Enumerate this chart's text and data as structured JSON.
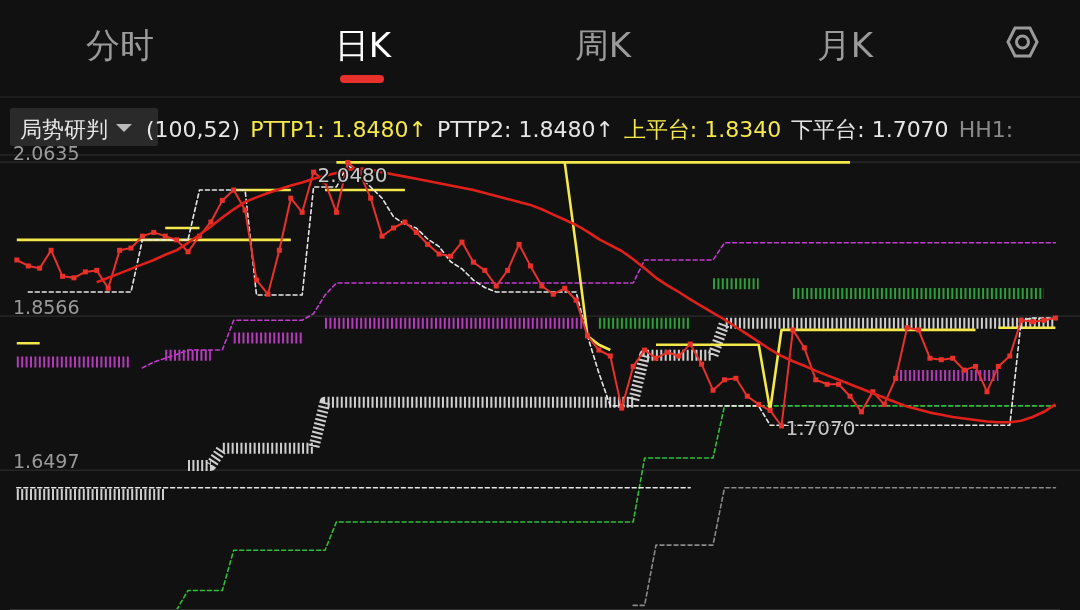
{
  "chart_data": {
    "type": "line",
    "annotations": [
      "分时",
      "日K",
      "周K",
      "月K",
      "局势研判",
      "(100,52)",
      "PTTP1: 1.8480↑",
      "PTTP2: 1.8480↑",
      "上平台: 1.8340",
      "下平台: 1.7070",
      "HH1:",
      {
        "text": "2.0480",
        "y": 2.048
      },
      {
        "text": "1.7070",
        "y": 1.707
      }
    ],
    "categories": [
      null,
      null,
      null,
      null,
      null,
      null,
      null,
      null,
      null,
      null,
      null,
      null,
      null,
      null,
      null,
      null,
      null,
      null,
      null,
      null,
      null,
      null,
      null,
      null,
      null,
      null,
      null,
      null,
      null,
      null,
      null,
      null,
      null,
      null,
      null,
      null,
      null,
      null,
      null,
      null,
      null,
      null,
      null,
      null,
      null,
      null,
      null,
      null,
      null,
      null,
      null,
      null,
      null,
      null,
      null,
      null,
      null,
      null,
      null,
      null,
      null,
      null,
      null,
      null,
      null,
      null,
      null,
      null,
      null,
      null,
      null,
      null,
      null,
      null,
      null,
      null,
      null,
      null,
      null,
      null,
      null,
      null,
      null,
      null,
      null,
      null,
      null,
      null,
      null,
      null,
      null,
      null
    ],
    "ylim": [
      1.4618,
      2.073
    ],
    "yticks": [
      2.0635,
      1.8566,
      1.6497
    ],
    "grid": "y",
    "tick_labels": "y",
    "series": [
      {
        "type": "line",
        "color": "#8a8a8a",
        "line_style": "dashed",
        "values": [
          null,
          null,
          null,
          null,
          null,
          null,
          null,
          null,
          null,
          null,
          null,
          null,
          null,
          null,
          null,
          null,
          null,
          null,
          null,
          null,
          null,
          null,
          null,
          null,
          null,
          null,
          null,
          null,
          null,
          null,
          null,
          null,
          null,
          null,
          null,
          null,
          null,
          null,
          null,
          null,
          null,
          null,
          null,
          null,
          null,
          null,
          null,
          null,
          null,
          null,
          null,
          null,
          null,
          null,
          1.468,
          1.468,
          1.549,
          1.549,
          1.549,
          1.549,
          1.549,
          1.549,
          1.626,
          1.626,
          1.626,
          1.626,
          1.626,
          1.626,
          1.626,
          1.626,
          1.626,
          1.626,
          1.626,
          1.626,
          1.626,
          1.626,
          1.626,
          1.626,
          1.626,
          1.626,
          1.626,
          1.626,
          1.626,
          1.626,
          1.626,
          1.626,
          1.626,
          1.626,
          1.626,
          1.626,
          1.626,
          1.626
        ]
      },
      {
        "type": "line",
        "color": "#2fbf3a",
        "line_style": "dashed",
        "values": [
          null,
          null,
          null,
          null,
          null,
          null,
          null,
          null,
          null,
          null,
          null,
          null,
          null,
          null,
          1.462,
          1.488,
          1.488,
          1.488,
          1.488,
          1.542,
          1.542,
          1.542,
          1.542,
          1.542,
          1.542,
          1.542,
          1.542,
          1.542,
          1.58,
          1.58,
          1.58,
          1.58,
          1.58,
          1.58,
          1.58,
          1.58,
          1.58,
          1.58,
          1.58,
          1.58,
          1.58,
          1.58,
          1.58,
          1.58,
          1.58,
          1.58,
          1.58,
          1.58,
          1.58,
          1.58,
          1.58,
          1.58,
          1.58,
          1.58,
          1.58,
          1.666,
          1.666,
          1.666,
          1.666,
          1.666,
          1.666,
          1.666,
          1.736,
          1.736,
          1.736,
          1.736,
          1.736,
          1.736,
          1.736,
          1.736,
          1.736,
          1.736,
          1.736,
          1.736,
          1.736,
          1.736,
          1.736,
          1.736,
          1.736,
          1.736,
          1.736,
          1.736,
          1.736,
          1.736,
          1.736,
          1.736,
          1.736,
          1.736,
          1.736,
          1.736,
          1.736,
          1.736
        ]
      },
      {
        "type": "line",
        "color": "#c23ccf",
        "line_style": "dashed",
        "values": [
          null,
          null,
          null,
          null,
          null,
          null,
          null,
          null,
          null,
          null,
          null,
          1.787,
          1.795,
          1.8,
          1.805,
          1.811,
          1.811,
          1.811,
          1.811,
          1.851,
          1.851,
          1.851,
          1.851,
          1.851,
          1.851,
          1.851,
          1.86,
          1.885,
          1.901,
          1.901,
          1.901,
          1.901,
          1.901,
          1.901,
          1.901,
          1.901,
          1.901,
          1.901,
          1.901,
          1.901,
          1.901,
          1.901,
          1.901,
          1.901,
          1.901,
          1.901,
          1.901,
          1.901,
          1.901,
          1.901,
          1.901,
          1.901,
          1.901,
          1.901,
          1.901,
          1.932,
          1.932,
          1.932,
          1.932,
          1.932,
          1.932,
          1.932,
          1.955,
          1.955,
          1.955,
          1.955,
          1.955,
          1.955,
          1.955,
          1.955,
          1.955,
          1.955,
          1.955,
          1.955,
          1.955,
          1.955,
          1.955,
          1.955,
          1.955,
          1.955,
          1.955,
          1.955,
          1.955,
          1.955,
          1.955,
          1.955,
          1.955,
          1.955,
          1.955,
          1.955,
          1.955,
          1.955
        ]
      },
      {
        "type": "line",
        "color": "#e6e6e6",
        "line_style": "dashed",
        "values": [
          1.626,
          1.626,
          1.626,
          1.626,
          1.626,
          1.626,
          1.626,
          1.626,
          1.626,
          1.626,
          1.626,
          1.626,
          1.626,
          1.626,
          1.626,
          1.626,
          1.626,
          1.626,
          1.626,
          1.626,
          1.626,
          1.626,
          1.626,
          1.626,
          1.626,
          1.626,
          1.626,
          1.626,
          1.626,
          1.626,
          1.626,
          1.626,
          1.626,
          1.626,
          1.626,
          1.626,
          1.626,
          1.626,
          1.626,
          1.626,
          1.626,
          1.626,
          1.626,
          1.626,
          1.626,
          1.626,
          1.626,
          1.626,
          1.626,
          1.626,
          1.626,
          1.626,
          1.626,
          1.626,
          1.626,
          1.626,
          1.626,
          1.626,
          1.626,
          1.626,
          null,
          null,
          null,
          null,
          null,
          null,
          null,
          null,
          null,
          null,
          null,
          null,
          null,
          null,
          null,
          null,
          null,
          null,
          null,
          null,
          null,
          null,
          null,
          null,
          null,
          null,
          null,
          null,
          null,
          null,
          null,
          null
        ]
      },
      {
        "type": "line",
        "color": "#b23cb8",
        "line_style": "dotted",
        "values": [
          1.795,
          1.795,
          1.795,
          1.795,
          1.795,
          1.795,
          1.795,
          1.795,
          1.795,
          1.795,
          1.795,
          null,
          null,
          1.804,
          1.804,
          1.804,
          1.804,
          1.804,
          null,
          1.827,
          1.827,
          1.827,
          1.827,
          1.827,
          1.827,
          1.827,
          null,
          1.847,
          1.847,
          1.847,
          1.847,
          1.847,
          1.847,
          1.847,
          1.847,
          1.847,
          1.847,
          1.847,
          1.847,
          1.847,
          1.847,
          1.847,
          1.847,
          1.847,
          1.847,
          1.847,
          1.847,
          1.847,
          1.847,
          1.847,
          1.847,
          null,
          null,
          null,
          null,
          null,
          null,
          null,
          null,
          null,
          null,
          null,
          null,
          null,
          null,
          null,
          null,
          null,
          null,
          null,
          null,
          null,
          null,
          null,
          null,
          null,
          null,
          1.777,
          1.777,
          1.777,
          1.777,
          1.777,
          1.777,
          1.777,
          1.777,
          1.777,
          1.777,
          null,
          null,
          null,
          null,
          null
        ]
      },
      {
        "type": "line",
        "color": "#2e9e3a",
        "line_style": "dotted",
        "values": [
          null,
          null,
          null,
          null,
          null,
          null,
          null,
          null,
          null,
          null,
          null,
          null,
          null,
          null,
          null,
          null,
          null,
          null,
          null,
          null,
          null,
          null,
          null,
          null,
          null,
          null,
          null,
          null,
          null,
          null,
          null,
          null,
          null,
          null,
          null,
          null,
          null,
          null,
          null,
          null,
          null,
          null,
          null,
          null,
          null,
          null,
          null,
          null,
          null,
          null,
          null,
          1.847,
          1.847,
          1.847,
          1.847,
          1.847,
          1.847,
          1.847,
          1.847,
          1.847,
          null,
          1.9,
          1.9,
          1.9,
          1.9,
          1.9,
          null,
          null,
          1.887,
          1.887,
          1.887,
          1.887,
          1.887,
          1.887,
          1.887,
          1.887,
          1.887,
          1.887,
          1.887,
          1.887,
          1.887,
          1.887,
          1.887,
          1.887,
          1.887,
          1.887,
          1.887,
          1.887,
          1.887,
          1.887,
          1.887,
          null
        ]
      },
      {
        "type": "line",
        "color": "#cfcfcf",
        "line_style": "dotted",
        "values": [
          1.617,
          1.617,
          1.617,
          1.617,
          1.617,
          1.617,
          1.617,
          1.617,
          1.617,
          1.617,
          1.617,
          1.617,
          1.617,
          1.617,
          null,
          1.656,
          1.656,
          1.656,
          1.679,
          1.679,
          1.679,
          1.679,
          1.679,
          1.679,
          1.679,
          1.679,
          1.679,
          1.741,
          1.741,
          1.741,
          1.741,
          1.741,
          1.741,
          1.741,
          1.741,
          1.741,
          1.741,
          1.741,
          1.741,
          1.741,
          1.741,
          1.741,
          1.741,
          1.741,
          1.741,
          1.741,
          1.741,
          1.741,
          1.741,
          1.741,
          1.741,
          1.741,
          1.741,
          1.741,
          1.741,
          1.804,
          1.804,
          1.804,
          1.804,
          1.804,
          1.804,
          1.804,
          1.847,
          1.847,
          1.847,
          1.847,
          1.847,
          1.847,
          1.847,
          1.847,
          1.847,
          1.847,
          1.847,
          1.847,
          1.847,
          1.847,
          1.847,
          1.847,
          1.847,
          1.847,
          1.847,
          1.847,
          1.847,
          1.847,
          1.847,
          1.847,
          1.847,
          1.847,
          1.847,
          1.847,
          1.847,
          1.847
        ]
      },
      {
        "type": "line",
        "color": "#f5e84a",
        "line_style": "solid",
        "values": [
          1.959,
          1.959,
          1.959,
          1.959,
          1.959,
          1.959,
          1.959,
          1.959,
          1.959,
          1.959,
          1.959,
          1.959,
          1.959,
          1.959,
          1.959,
          1.959,
          1.959,
          1.959,
          1.959,
          1.959,
          1.959,
          1.959,
          1.959,
          1.959,
          1.959,
          null,
          null,
          null,
          null,
          null,
          null,
          null,
          null,
          null,
          null,
          null,
          null,
          null,
          null,
          null,
          null,
          null,
          null,
          null,
          null,
          null,
          null,
          null,
          null,
          null,
          null,
          null,
          null,
          null,
          null,
          null,
          null,
          null,
          null,
          null,
          null,
          null,
          null,
          null,
          null,
          null,
          null,
          null,
          null,
          null,
          null,
          null,
          null,
          null,
          null,
          null,
          null,
          null,
          null,
          null,
          null,
          null,
          null,
          null,
          null,
          null,
          null,
          null,
          null,
          null,
          null,
          null
        ]
      },
      {
        "type": "line",
        "color": "#f5e84a",
        "line_style": "solid",
        "values": [
          1.82,
          1.82,
          1.82,
          null,
          null,
          null,
          null,
          null,
          null,
          null,
          null,
          null,
          null,
          1.975,
          1.975,
          1.975,
          1.975,
          null,
          null,
          null,
          null,
          null,
          null,
          null,
          null,
          null,
          null,
          null,
          null,
          null,
          null,
          null,
          null,
          null,
          null,
          null,
          null,
          null,
          null,
          null,
          null,
          null,
          null,
          null,
          null,
          null,
          null,
          null,
          null,
          null,
          null,
          null,
          null,
          null,
          null,
          null,
          null,
          null,
          null,
          null,
          null,
          null,
          null,
          null,
          null,
          null,
          null,
          null,
          null,
          null,
          null,
          null,
          null,
          null,
          null,
          null,
          null,
          null,
          null,
          null,
          null,
          null,
          null,
          null,
          null,
          null,
          null,
          null,
          null,
          null,
          null,
          null
        ]
      },
      {
        "type": "line",
        "color": "#f5e84a",
        "line_style": "solid",
        "values": [
          null,
          null,
          null,
          null,
          null,
          null,
          null,
          null,
          null,
          null,
          null,
          null,
          null,
          null,
          null,
          null,
          null,
          null,
          null,
          2.026,
          2.026,
          2.026,
          2.026,
          2.026,
          2.026,
          null,
          null,
          2.026,
          2.026,
          2.026,
          2.026,
          2.026,
          2.026,
          2.026,
          2.026,
          null,
          null,
          null,
          null,
          null,
          null,
          null,
          null,
          null,
          null,
          null,
          null,
          null,
          null,
          null,
          null,
          null,
          null,
          null,
          null,
          null,
          null,
          null,
          null,
          null,
          null,
          null,
          null,
          null,
          null,
          null,
          null,
          null,
          null,
          null,
          null,
          null,
          null,
          null,
          null,
          null,
          null,
          null,
          null,
          null,
          null,
          null,
          null,
          null,
          null,
          null,
          null,
          null,
          null,
          null,
          null,
          null
        ]
      },
      {
        "type": "line",
        "color": "#f5e84a",
        "line_style": "solid",
        "values": [
          null,
          null,
          null,
          null,
          null,
          null,
          null,
          null,
          null,
          null,
          null,
          null,
          null,
          null,
          null,
          null,
          null,
          null,
          null,
          null,
          null,
          null,
          null,
          null,
          null,
          null,
          null,
          null,
          2.063,
          2.063,
          2.063,
          2.063,
          2.063,
          2.063,
          2.063,
          2.063,
          2.063,
          2.063,
          2.063,
          2.063,
          2.063,
          2.063,
          2.063,
          2.063,
          2.063,
          2.063,
          2.063,
          2.063,
          2.063,
          2.063,
          2.063,
          2.063,
          2.063,
          2.063,
          2.063,
          2.063,
          2.063,
          2.063,
          2.063,
          2.063,
          2.063,
          2.063,
          2.063,
          2.063,
          2.063,
          2.063,
          2.063,
          2.063,
          2.063,
          2.063,
          2.063,
          2.063,
          2.063,
          2.063,
          null,
          null,
          null,
          null,
          null,
          null,
          null,
          null,
          null,
          null,
          null,
          null,
          null,
          null,
          null,
          null,
          null,
          null
        ]
      },
      {
        "type": "line",
        "color": "#f5e84a",
        "line_style": "solid",
        "values": [
          null,
          null,
          null,
          null,
          null,
          null,
          null,
          null,
          null,
          null,
          null,
          null,
          null,
          null,
          null,
          null,
          null,
          null,
          null,
          null,
          null,
          null,
          null,
          null,
          null,
          null,
          null,
          null,
          null,
          null,
          null,
          null,
          null,
          null,
          null,
          null,
          null,
          null,
          null,
          null,
          null,
          null,
          null,
          null,
          null,
          null,
          null,
          null,
          2.063,
          1.95,
          1.83,
          1.818,
          1.811,
          null,
          null,
          null,
          1.818,
          1.818,
          1.818,
          1.818,
          1.818,
          1.818,
          1.818,
          1.818,
          1.818,
          1.818,
          1.73,
          1.838,
          1.838,
          1.838,
          1.838,
          1.838,
          1.838,
          1.838,
          1.838,
          1.838,
          1.838,
          1.838,
          1.838,
          1.838,
          1.838,
          1.838,
          1.838,
          1.838,
          1.838,
          null,
          1.841,
          1.841,
          1.841,
          1.841,
          1.841,
          1.841
        ]
      },
      {
        "type": "line",
        "color": "#e6e6e6",
        "line_style": "dashed",
        "values": [
          null,
          1.889,
          1.889,
          1.889,
          1.889,
          1.889,
          1.889,
          1.889,
          1.889,
          1.889,
          1.889,
          1.959,
          1.959,
          1.959,
          1.959,
          1.959,
          2.026,
          2.026,
          2.026,
          2.026,
          2.026,
          1.885,
          1.885,
          1.885,
          1.885,
          1.885,
          2.03,
          2.03,
          2.03,
          2.06,
          2.045,
          2.03,
          2.015,
          1.99,
          1.98,
          1.975,
          1.96,
          1.95,
          1.93,
          1.92,
          1.905,
          1.895,
          1.889,
          1.889,
          1.889,
          1.889,
          1.889,
          1.889,
          1.889,
          1.889,
          1.83,
          1.78,
          1.736,
          1.736,
          1.736,
          1.736,
          1.736,
          1.736,
          1.736,
          1.736,
          1.736,
          1.736,
          1.736,
          1.736,
          1.736,
          1.736,
          1.71,
          1.71,
          1.71,
          1.71,
          1.71,
          1.71,
          1.71,
          1.71,
          1.71,
          1.71,
          1.71,
          1.71,
          1.71,
          1.71,
          1.71,
          1.71,
          1.71,
          1.71,
          1.71,
          1.71,
          1.71,
          1.71,
          1.851,
          1.854,
          1.854,
          1.854
        ]
      },
      {
        "type": "line",
        "color": "#e8312a",
        "line_style": "solid",
        "marker": "square",
        "values": [
          1.932,
          1.924,
          1.921,
          1.945,
          1.91,
          1.908,
          1.916,
          1.918,
          1.894,
          1.945,
          1.948,
          1.964,
          1.969,
          1.964,
          1.959,
          1.943,
          1.964,
          1.983,
          2.012,
          2.026,
          1.999,
          1.905,
          1.886,
          1.945,
          2.015,
          1.996,
          2.05,
          2.037,
          1.996,
          2.063,
          2.05,
          2.015,
          1.964,
          1.975,
          1.983,
          1.969,
          1.953,
          1.94,
          1.937,
          1.956,
          1.929,
          1.918,
          1.897,
          1.918,
          1.953,
          1.924,
          1.897,
          1.886,
          1.894,
          1.878,
          1.83,
          1.811,
          1.803,
          1.733,
          1.789,
          1.811,
          1.8,
          1.808,
          1.803,
          1.819,
          1.792,
          1.757,
          1.771,
          1.773,
          1.749,
          1.738,
          1.73,
          1.709,
          1.838,
          1.814,
          1.771,
          1.765,
          1.765,
          1.749,
          1.728,
          1.755,
          1.738,
          1.773,
          1.841,
          1.838,
          1.8,
          1.798,
          1.8,
          1.784,
          1.789,
          1.755,
          1.789,
          1.803,
          1.851,
          1.849,
          1.851,
          1.854
        ]
      },
      {
        "type": "line",
        "color": "#e0201b",
        "line_style": "solid",
        "values": [
          null,
          null,
          null,
          null,
          null,
          null,
          null,
          1.902,
          1.908,
          1.914,
          1.92,
          1.926,
          1.932,
          1.939,
          1.945,
          1.955,
          1.966,
          1.977,
          1.989,
          2.0,
          2.01,
          2.016,
          2.022,
          2.027,
          2.032,
          2.036,
          2.041,
          2.045,
          2.049,
          2.053,
          2.055,
          2.053,
          2.05,
          2.047,
          2.044,
          2.041,
          2.038,
          2.035,
          2.032,
          2.029,
          2.026,
          2.022,
          2.018,
          2.014,
          2.01,
          2.006,
          2.0,
          1.993,
          1.986,
          1.979,
          1.97,
          1.96,
          1.952,
          1.944,
          1.933,
          1.921,
          1.908,
          1.898,
          1.889,
          1.879,
          1.87,
          1.861,
          1.852,
          1.842,
          1.832,
          1.822,
          1.812,
          1.803,
          1.796,
          1.79,
          1.783,
          1.777,
          1.771,
          1.765,
          1.759,
          1.753,
          1.747,
          1.741,
          1.735,
          1.731,
          1.727,
          1.724,
          1.721,
          1.719,
          1.717,
          1.715,
          1.714,
          1.714,
          1.716,
          1.721,
          1.728,
          1.738
        ]
      }
    ]
  }
}
